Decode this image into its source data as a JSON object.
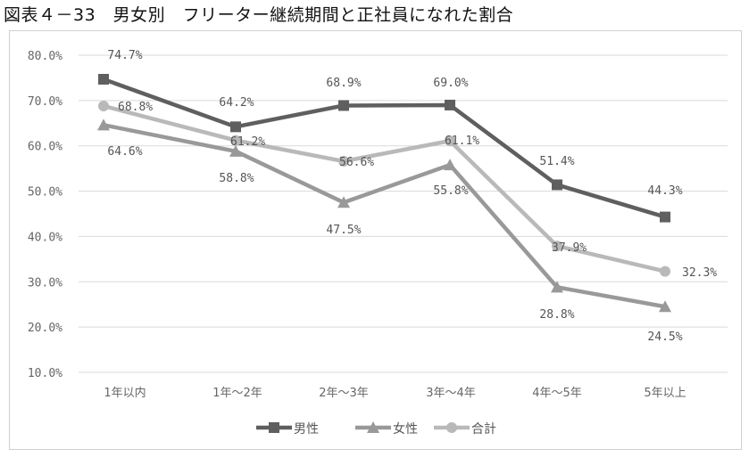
{
  "title": "図表４－33　男女別　フリーター継続期間と正社員になれた割合",
  "chart_data": {
    "type": "line",
    "categories": [
      "1年以内",
      "1年～2年",
      "2年～3年",
      "3年～4年",
      "4年～5年",
      "5年以上"
    ],
    "ylim": [
      10,
      80
    ],
    "yticks": [
      "10.0%",
      "20.0%",
      "30.0%",
      "40.0%",
      "50.0%",
      "60.0%",
      "70.0%",
      "80.0%"
    ],
    "grid": true,
    "legend": "bottom",
    "series": [
      {
        "name": "男性",
        "values": [
          74.7,
          64.2,
          68.9,
          69.0,
          51.4,
          44.3
        ],
        "labels": [
          "74.7%",
          "64.2%",
          "68.9%",
          "69.0%",
          "51.4%",
          "44.3%"
        ],
        "color": "#5f5f5f",
        "marker": "square"
      },
      {
        "name": "女性",
        "values": [
          64.6,
          58.8,
          47.5,
          55.8,
          28.8,
          24.5
        ],
        "labels": [
          "64.6%",
          "58.8%",
          "47.5%",
          "55.8%",
          "28.8%",
          "24.5%"
        ],
        "color": "#999999",
        "marker": "triangle"
      },
      {
        "name": "合計",
        "values": [
          68.8,
          61.2,
          56.6,
          61.1,
          37.9,
          32.3
        ],
        "labels": [
          "68.8%",
          "61.2%",
          "56.6%",
          "61.1%",
          "37.9%",
          "32.3%"
        ],
        "color": "#b9b9b9",
        "marker": "circle"
      }
    ]
  }
}
